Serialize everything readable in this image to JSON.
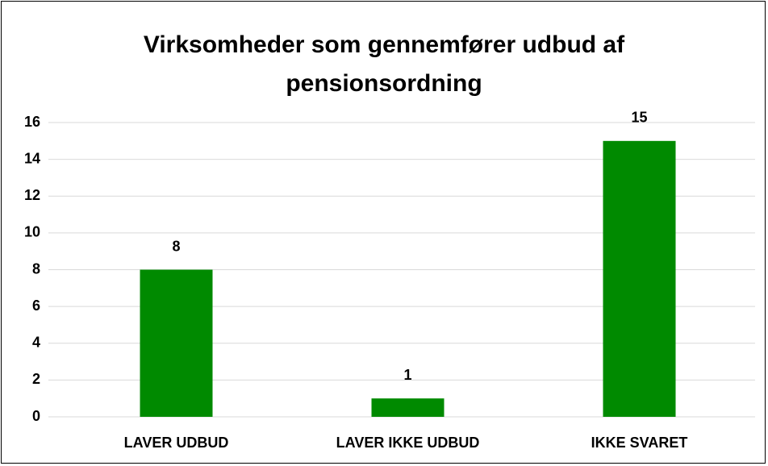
{
  "chart_data": {
    "type": "bar",
    "title": "Virksomheder som gennemfører udbud af pensionsordning",
    "categories": [
      "LAVER UDBUD",
      "LAVER IKKE UDBUD",
      "IKKE SVARET"
    ],
    "values": [
      8,
      1,
      15
    ],
    "color": "#008a00",
    "ylim": [
      0,
      16
    ],
    "yticks": [
      0,
      2,
      4,
      6,
      8,
      10,
      12,
      14,
      16
    ],
    "grid": true,
    "data_labels": true
  }
}
